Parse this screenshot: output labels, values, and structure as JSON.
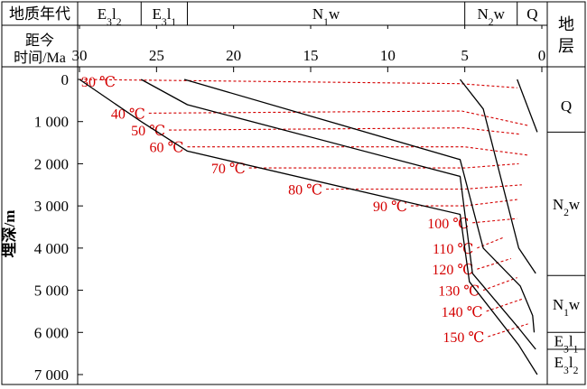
{
  "chart_data": {
    "type": "line",
    "header": {
      "age_label": "地质年代",
      "time_label_1": "距今",
      "time_label_2": "时间/Ma",
      "ages": [
        {
          "base": "E",
          "sub": "3",
          "rest": "l",
          "sub2": "2",
          "from": 30,
          "to": 26
        },
        {
          "base": "E",
          "sub": "3",
          "rest": "l",
          "sub2": "1",
          "from": 26,
          "to": 23
        },
        {
          "base": "N",
          "sub": "1",
          "rest": "w",
          "sub2": "",
          "from": 23,
          "to": 5
        },
        {
          "base": "N",
          "sub": "2",
          "rest": "w",
          "sub2": "",
          "from": 5,
          "to": 1.6
        },
        {
          "base": "Q",
          "sub": "",
          "rest": "",
          "sub2": "",
          "from": 1.6,
          "to": 0
        }
      ]
    },
    "x_axis": {
      "ticks": [
        "30",
        "25",
        "20",
        "15",
        "10",
        "5",
        "0"
      ],
      "values": [
        30,
        25,
        20,
        15,
        10,
        5,
        0
      ],
      "range": [
        30,
        0
      ]
    },
    "y_axis": {
      "label": "埋深/m",
      "ticks": [
        "0",
        "1 000",
        "2 000",
        "3 000",
        "4 000",
        "5 000",
        "6 000",
        "7 000"
      ],
      "values": [
        0,
        1000,
        2000,
        3000,
        4000,
        5000,
        6000,
        7000
      ],
      "range": [
        0,
        7000
      ]
    },
    "strata_column": {
      "title": "地层",
      "boundaries_m": [
        0,
        1250,
        4650,
        6000,
        6400,
        7000
      ],
      "units": [
        {
          "base": "Q",
          "sub": "",
          "rest": "",
          "sub2": ""
        },
        {
          "base": "N",
          "sub": "2",
          "rest": "w",
          "sub2": ""
        },
        {
          "base": "N",
          "sub": "1",
          "rest": "w",
          "sub2": ""
        },
        {
          "base": "E",
          "sub": "3",
          "rest": "l",
          "sub2": "1"
        },
        {
          "base": "E",
          "sub": "3",
          "rest": "l",
          "sub2": "2"
        }
      ]
    },
    "burial_curves": [
      {
        "points": [
          [
            30,
            0
          ],
          [
            26,
            1000
          ],
          [
            23,
            1700
          ],
          [
            5.3,
            3200
          ],
          [
            4.7,
            4800
          ],
          [
            1.5,
            6300
          ],
          [
            0.3,
            7000
          ]
        ]
      },
      {
        "points": [
          [
            26,
            0
          ],
          [
            23,
            600
          ],
          [
            5.3,
            2300
          ],
          [
            4.5,
            4600
          ],
          [
            1.5,
            5900
          ],
          [
            0.4,
            6400
          ]
        ]
      },
      {
        "points": [
          [
            23.2,
            0
          ],
          [
            5.3,
            1900
          ],
          [
            3.8,
            4000
          ],
          [
            1.4,
            4900
          ],
          [
            0.6,
            5600
          ],
          [
            0.5,
            6000
          ]
        ]
      },
      {
        "points": [
          [
            5.3,
            0
          ],
          [
            3.8,
            700
          ],
          [
            1.5,
            4000
          ],
          [
            0.4,
            4600
          ]
        ]
      },
      {
        "points": [
          [
            1.6,
            0
          ],
          [
            0.3,
            1250
          ]
        ]
      }
    ],
    "isotherms": [
      {
        "label": "30 ℃",
        "temp": 30,
        "points": [
          [
            30,
            0
          ],
          [
            5.3,
            100
          ],
          [
            1.6,
            200
          ]
        ]
      },
      {
        "label": "40 ℃",
        "temp": 40,
        "points": [
          [
            25.5,
            800
          ],
          [
            5.2,
            750
          ],
          [
            0.8,
            1100
          ]
        ]
      },
      {
        "label": "50 ℃",
        "temp": 50,
        "points": [
          [
            24.2,
            1200
          ],
          [
            5.1,
            1150
          ],
          [
            1.4,
            1300
          ]
        ]
      },
      {
        "label": "60 ℃",
        "temp": 60,
        "points": [
          [
            23,
            1600
          ],
          [
            5,
            1600
          ],
          [
            0.8,
            1800
          ]
        ]
      },
      {
        "label": "70 ℃",
        "temp": 70,
        "points": [
          [
            19,
            2100
          ],
          [
            5,
            2100
          ],
          [
            1.5,
            2000
          ]
        ]
      },
      {
        "label": "80 ℃",
        "temp": 80,
        "points": [
          [
            14,
            2600
          ],
          [
            5,
            2600
          ],
          [
            1.3,
            2500
          ]
        ]
      },
      {
        "label": "90 ℃",
        "temp": 90,
        "points": [
          [
            8.5,
            3000
          ],
          [
            5,
            3000
          ],
          [
            1.6,
            2850
          ]
        ]
      },
      {
        "label": "100 ℃",
        "temp": 100,
        "points": [
          [
            4.5,
            3400
          ],
          [
            1.6,
            3300
          ]
        ]
      },
      {
        "label": "110 ℃",
        "temp": 110,
        "points": [
          [
            4.2,
            4000
          ],
          [
            2.5,
            3750
          ]
        ]
      },
      {
        "label": "120 ℃",
        "temp": 120,
        "points": [
          [
            4.2,
            4500
          ],
          [
            2.0,
            4250
          ]
        ]
      },
      {
        "label": "130 ℃",
        "temp": 130,
        "points": [
          [
            3.8,
            5000
          ],
          [
            1.6,
            4700
          ]
        ]
      },
      {
        "label": "140 ℃",
        "temp": 140,
        "points": [
          [
            3.6,
            5500
          ],
          [
            1.2,
            5200
          ]
        ]
      },
      {
        "label": "150 ℃",
        "temp": 150,
        "points": [
          [
            3.5,
            6100
          ],
          [
            0.9,
            5800
          ]
        ]
      }
    ],
    "colors": {
      "curve": "#000000",
      "isotherm": "#d40000",
      "label": "#d40000"
    }
  }
}
